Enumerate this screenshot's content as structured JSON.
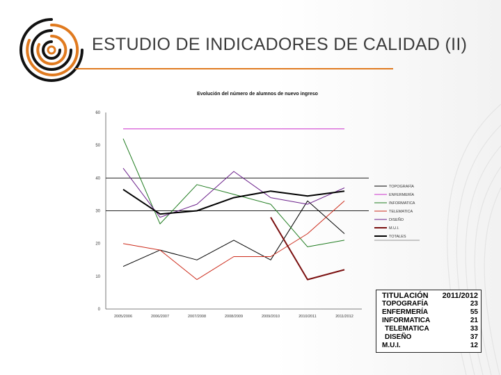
{
  "slide": {
    "title": "ESTUDIO DE INDICADORES DE CALIDAD (II)",
    "accent_color": "#e07a1f",
    "logo_icon": "concentric-rings-logo-icon"
  },
  "chart_data": {
    "type": "line",
    "title": "Evolución del número de alumnos de nuevo ingreso",
    "xlabel": "",
    "ylabel": "",
    "categories": [
      "2005/2006",
      "2006/2007",
      "2007/2008",
      "2008/2009",
      "2009/2010",
      "2010/2011",
      "2011/2012"
    ],
    "ylim": [
      0,
      60
    ],
    "yticks": [
      "0",
      "10",
      "20",
      "30",
      "40",
      "50",
      "60"
    ],
    "gridlines_y": [
      30,
      40
    ],
    "legend_position": "right",
    "series": [
      {
        "name": "TOPOGRAFÍA",
        "color": "#000000",
        "values": [
          13,
          18,
          15,
          21,
          15,
          33,
          23
        ]
      },
      {
        "name": "ENFERMERÍA",
        "color": "#cc33cc",
        "values": [
          55,
          55,
          55,
          55,
          55,
          55,
          55
        ]
      },
      {
        "name": "INFORMATICA",
        "color": "#1e7b1e",
        "values": [
          52,
          26,
          38,
          35,
          32,
          19,
          21
        ]
      },
      {
        "name": "TELEMATICA",
        "color": "#cc2a1a",
        "values": [
          20,
          18,
          9,
          16,
          16,
          23,
          33
        ]
      },
      {
        "name": "DISEÑO",
        "color": "#6a1f8a",
        "values": [
          43,
          28,
          32,
          42,
          34,
          32,
          37
        ]
      },
      {
        "name": "M.U.I.",
        "color": "#7a0f0f",
        "values": [
          null,
          null,
          null,
          null,
          28,
          9,
          12
        ]
      },
      {
        "name": "TOTALES",
        "color": "#000000",
        "values": [
          36.5,
          29,
          30,
          34,
          36,
          34.5,
          36
        ]
      }
    ]
  },
  "table": {
    "header": [
      "TITULACIÓN",
      "2011/2012"
    ],
    "rows": [
      {
        "label": "TOPOGRAFÍA",
        "value": "23"
      },
      {
        "label": "ENFERMERÍA",
        "value": "55"
      },
      {
        "label": "INFORMATICA",
        "value": "21"
      },
      {
        "label": "TELEMATICA",
        "value": "33"
      },
      {
        "label": "DISEÑO",
        "value": "37"
      },
      {
        "label": "M.U.I.",
        "value": "12"
      }
    ]
  }
}
